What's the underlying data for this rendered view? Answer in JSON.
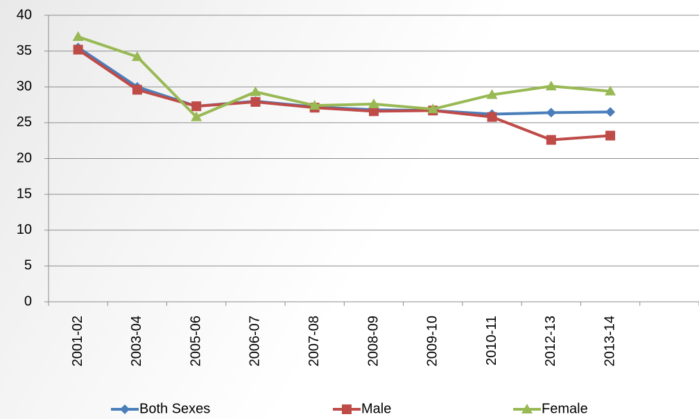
{
  "chart_data": {
    "type": "line",
    "categories": [
      "2001-02",
      "2003-04",
      "2005-06",
      "2006-07",
      "2007-08",
      "2008-09",
      "2009-10",
      "2010-11",
      "2012-13",
      "2013-14",
      null
    ],
    "series": [
      {
        "name": "Both Sexes",
        "color": "#4a7ebb",
        "marker": "diamond",
        "values": [
          35.5,
          30,
          27.3,
          28,
          27.2,
          26.8,
          26.7,
          26.2,
          26.4,
          26.5,
          null
        ]
      },
      {
        "name": "Male",
        "color": "#be4b48",
        "marker": "square",
        "values": [
          35.2,
          29.6,
          27.3,
          27.9,
          27.1,
          26.6,
          26.7,
          25.8,
          22.6,
          23.2,
          null
        ]
      },
      {
        "name": "Female",
        "color": "#98b954",
        "marker": "triangle",
        "values": [
          37,
          34.2,
          25.8,
          29.3,
          27.4,
          27.6,
          26.9,
          28.9,
          30.1,
          29.4,
          null
        ]
      }
    ],
    "ylim": [
      0,
      40
    ],
    "yticks": [
      0,
      5,
      10,
      15,
      20,
      25,
      30,
      35,
      40
    ],
    "grid": true,
    "legend": "bottom"
  }
}
